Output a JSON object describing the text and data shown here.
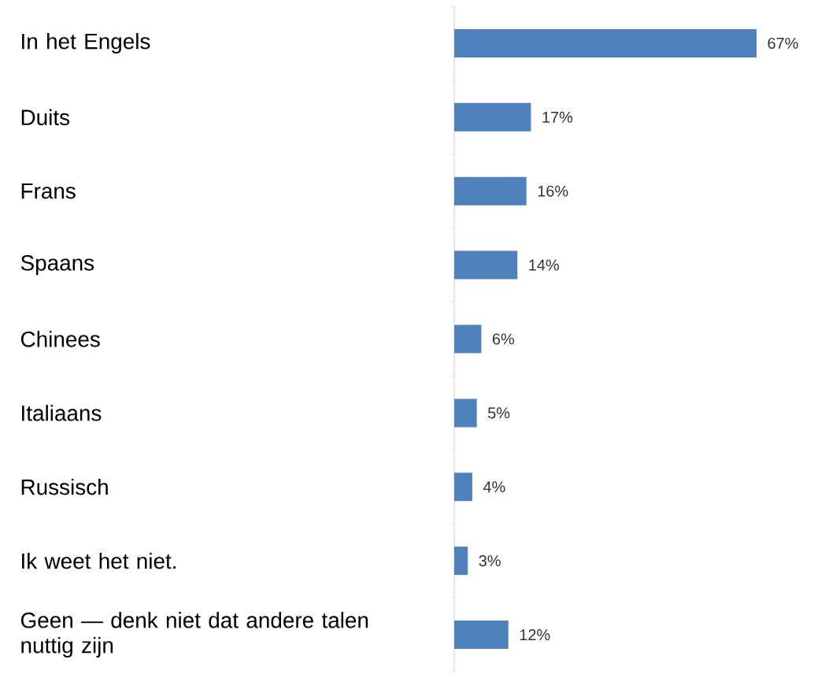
{
  "chart_data": {
    "type": "bar",
    "orientation": "horizontal",
    "categories": [
      "In het Engels",
      "Duits",
      "Frans",
      "Spaans",
      "Chinees",
      "Italiaans",
      "Russisch",
      "Ik weet het niet.",
      "Geen — denk niet dat andere talen nuttig zijn"
    ],
    "values": [
      67,
      17,
      16,
      14,
      6,
      5,
      4,
      3,
      12
    ],
    "value_labels": [
      "67%",
      "17%",
      "16%",
      "14%",
      "6%",
      "5%",
      "4%",
      "3%",
      "12%"
    ],
    "color": "#4f81bd"
  }
}
